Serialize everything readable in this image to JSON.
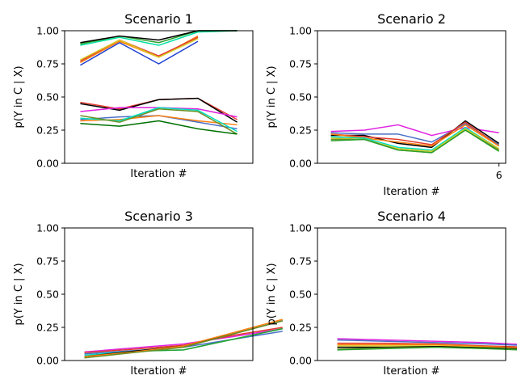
{
  "chart_data": [
    {
      "type": "line",
      "title": "Scenario 1",
      "xlabel": "Iteration #",
      "ylabel": "p(Y in C | X)",
      "ylim": [
        0,
        1
      ],
      "xlim": [
        0.6,
        5.4
      ],
      "yticks": [
        "0.00",
        "0.25",
        "0.50",
        "0.75",
        "1.00"
      ],
      "xticks": [],
      "series": [
        {
          "color": "#1f3fd0",
          "values": [
            0.74,
            0.91,
            0.75,
            0.92,
            null
          ]
        },
        {
          "color": "#ff7f0e",
          "values": [
            0.76,
            0.92,
            0.8,
            0.96,
            null
          ]
        },
        {
          "color": "#e33b2e",
          "values": [
            0.77,
            0.93,
            0.81,
            0.95,
            null
          ]
        },
        {
          "color": "#d7c91f",
          "values": [
            0.78,
            0.93,
            0.8,
            0.94,
            null
          ]
        },
        {
          "color": "#00e0a0",
          "values": [
            0.89,
            0.95,
            0.89,
            0.99,
            1.0
          ]
        },
        {
          "color": "#2ca02c",
          "values": [
            0.9,
            0.96,
            0.91,
            1.0,
            1.0
          ]
        },
        {
          "color": "#000000",
          "values": [
            0.91,
            0.96,
            0.93,
            1.0,
            1.0
          ]
        },
        {
          "color": "#e33b2e",
          "values": [
            0.46,
            0.41,
            0.48,
            0.49,
            0.33
          ]
        },
        {
          "color": "#000000",
          "values": [
            0.45,
            0.4,
            0.48,
            0.49,
            0.31
          ]
        },
        {
          "color": "#e022e0",
          "values": [
            0.39,
            0.42,
            0.42,
            0.41,
            0.35
          ]
        },
        {
          "color": "#4a6fc8",
          "values": [
            0.33,
            0.35,
            0.36,
            0.31,
            0.26
          ]
        },
        {
          "color": "#ff7f0e",
          "values": [
            0.32,
            0.33,
            0.36,
            0.32,
            0.29
          ]
        },
        {
          "color": "#00e0c0",
          "values": [
            0.34,
            0.32,
            0.42,
            0.4,
            0.24
          ]
        },
        {
          "color": "#6b8e23",
          "values": [
            0.36,
            0.31,
            0.41,
            0.39,
            0.22
          ]
        },
        {
          "color": "#007000",
          "values": [
            0.3,
            0.28,
            0.32,
            0.26,
            0.22
          ]
        }
      ]
    },
    {
      "type": "line",
      "title": "Scenario 2",
      "xlabel": "Iteration #",
      "ylabel": "p(Y in C | X)",
      "ylim": [
        0,
        1
      ],
      "xlim": [
        0.6,
        6.2
      ],
      "yticks": [
        "0.00",
        "0.25",
        "0.50",
        "0.75",
        "1.00"
      ],
      "xticks": [
        6
      ],
      "series": [
        {
          "color": "#e022e0",
          "values": [
            0.24,
            0.25,
            0.29,
            0.21,
            0.27,
            0.23
          ]
        },
        {
          "color": "#4a6fc8",
          "values": [
            0.23,
            0.22,
            0.22,
            0.16,
            0.3,
            0.14
          ]
        },
        {
          "color": "#000000",
          "values": [
            0.21,
            0.21,
            0.15,
            0.12,
            0.32,
            0.15
          ]
        },
        {
          "color": "#e33b2e",
          "values": [
            0.22,
            0.2,
            0.18,
            0.14,
            0.31,
            0.13
          ]
        },
        {
          "color": "#ff7f0e",
          "values": [
            0.22,
            0.19,
            0.16,
            0.13,
            0.29,
            0.13
          ]
        },
        {
          "color": "#00e0c0",
          "values": [
            0.2,
            0.19,
            0.12,
            0.1,
            0.27,
            0.11
          ]
        },
        {
          "color": "#d7c91f",
          "values": [
            0.19,
            0.18,
            0.11,
            0.09,
            0.26,
            0.11
          ]
        },
        {
          "color": "#6b8e23",
          "values": [
            0.18,
            0.18,
            0.1,
            0.08,
            0.25,
            0.1
          ]
        },
        {
          "color": "#2ca02c",
          "values": [
            0.17,
            0.18,
            0.1,
            0.08,
            0.25,
            0.09
          ]
        }
      ]
    },
    {
      "type": "line",
      "title": "Scenario 3",
      "xlabel": "Iteration #",
      "ylabel": "p(Y in C | X)",
      "ylim": [
        0,
        1
      ],
      "xlim": [
        0.6,
        4.4
      ],
      "yticks": [
        "0.00",
        "0.25",
        "0.50",
        "0.75",
        "1.00"
      ],
      "xticks": [],
      "series": [
        {
          "color": "#e022e0",
          "values": [
            0.065,
            0.095,
            0.125,
            0.18,
            0.24
          ]
        },
        {
          "color": "#e33b2e",
          "values": [
            0.06,
            0.085,
            0.115,
            0.19,
            0.25
          ]
        },
        {
          "color": "#4a6fc8",
          "values": [
            0.05,
            0.075,
            0.1,
            0.16,
            0.22
          ]
        },
        {
          "color": "#00e0c0",
          "values": [
            0.04,
            0.07,
            0.08,
            0.16,
            0.24
          ]
        },
        {
          "color": "#2ca02c",
          "values": [
            0.03,
            0.07,
            0.08,
            0.16,
            0.24
          ]
        },
        {
          "color": "#000000",
          "values": [
            0.03,
            0.07,
            0.11,
            0.2,
            0.3
          ]
        },
        {
          "color": "#ff7f0e",
          "values": [
            0.03,
            0.065,
            0.11,
            0.21,
            0.31
          ]
        },
        {
          "color": "#6b8e23",
          "values": [
            0.02,
            0.06,
            0.1,
            0.2,
            0.3
          ]
        }
      ]
    },
    {
      "type": "line",
      "title": "Scenario 4",
      "xlabel": "Iteration #",
      "ylabel": "p(Y in C | X)",
      "ylim": [
        0,
        1
      ],
      "xlim": [
        0.6,
        4.4
      ],
      "yticks": [
        "0.00",
        "0.25",
        "0.50",
        "0.75",
        "1.00"
      ],
      "xticks": [],
      "series": [
        {
          "color": "#e022e0",
          "values": [
            0.165,
            0.155,
            0.145,
            0.135,
            0.115
          ]
        },
        {
          "color": "#4a6fc8",
          "values": [
            0.155,
            0.145,
            0.135,
            0.125,
            0.11
          ]
        },
        {
          "color": "#e33b2e",
          "values": [
            0.13,
            0.13,
            0.125,
            0.11,
            0.1
          ]
        },
        {
          "color": "#ff7f0e",
          "values": [
            0.12,
            0.12,
            0.12,
            0.105,
            0.09
          ]
        },
        {
          "color": "#d7c91f",
          "values": [
            0.11,
            0.11,
            0.11,
            0.1,
            0.085
          ]
        },
        {
          "color": "#000000",
          "values": [
            0.1,
            0.1,
            0.105,
            0.095,
            0.085
          ]
        },
        {
          "color": "#6b8e23",
          "values": [
            0.085,
            0.095,
            0.1,
            0.09,
            0.08
          ]
        },
        {
          "color": "#2ca02c",
          "values": [
            0.08,
            0.09,
            0.1,
            0.09,
            0.075
          ]
        }
      ]
    }
  ]
}
